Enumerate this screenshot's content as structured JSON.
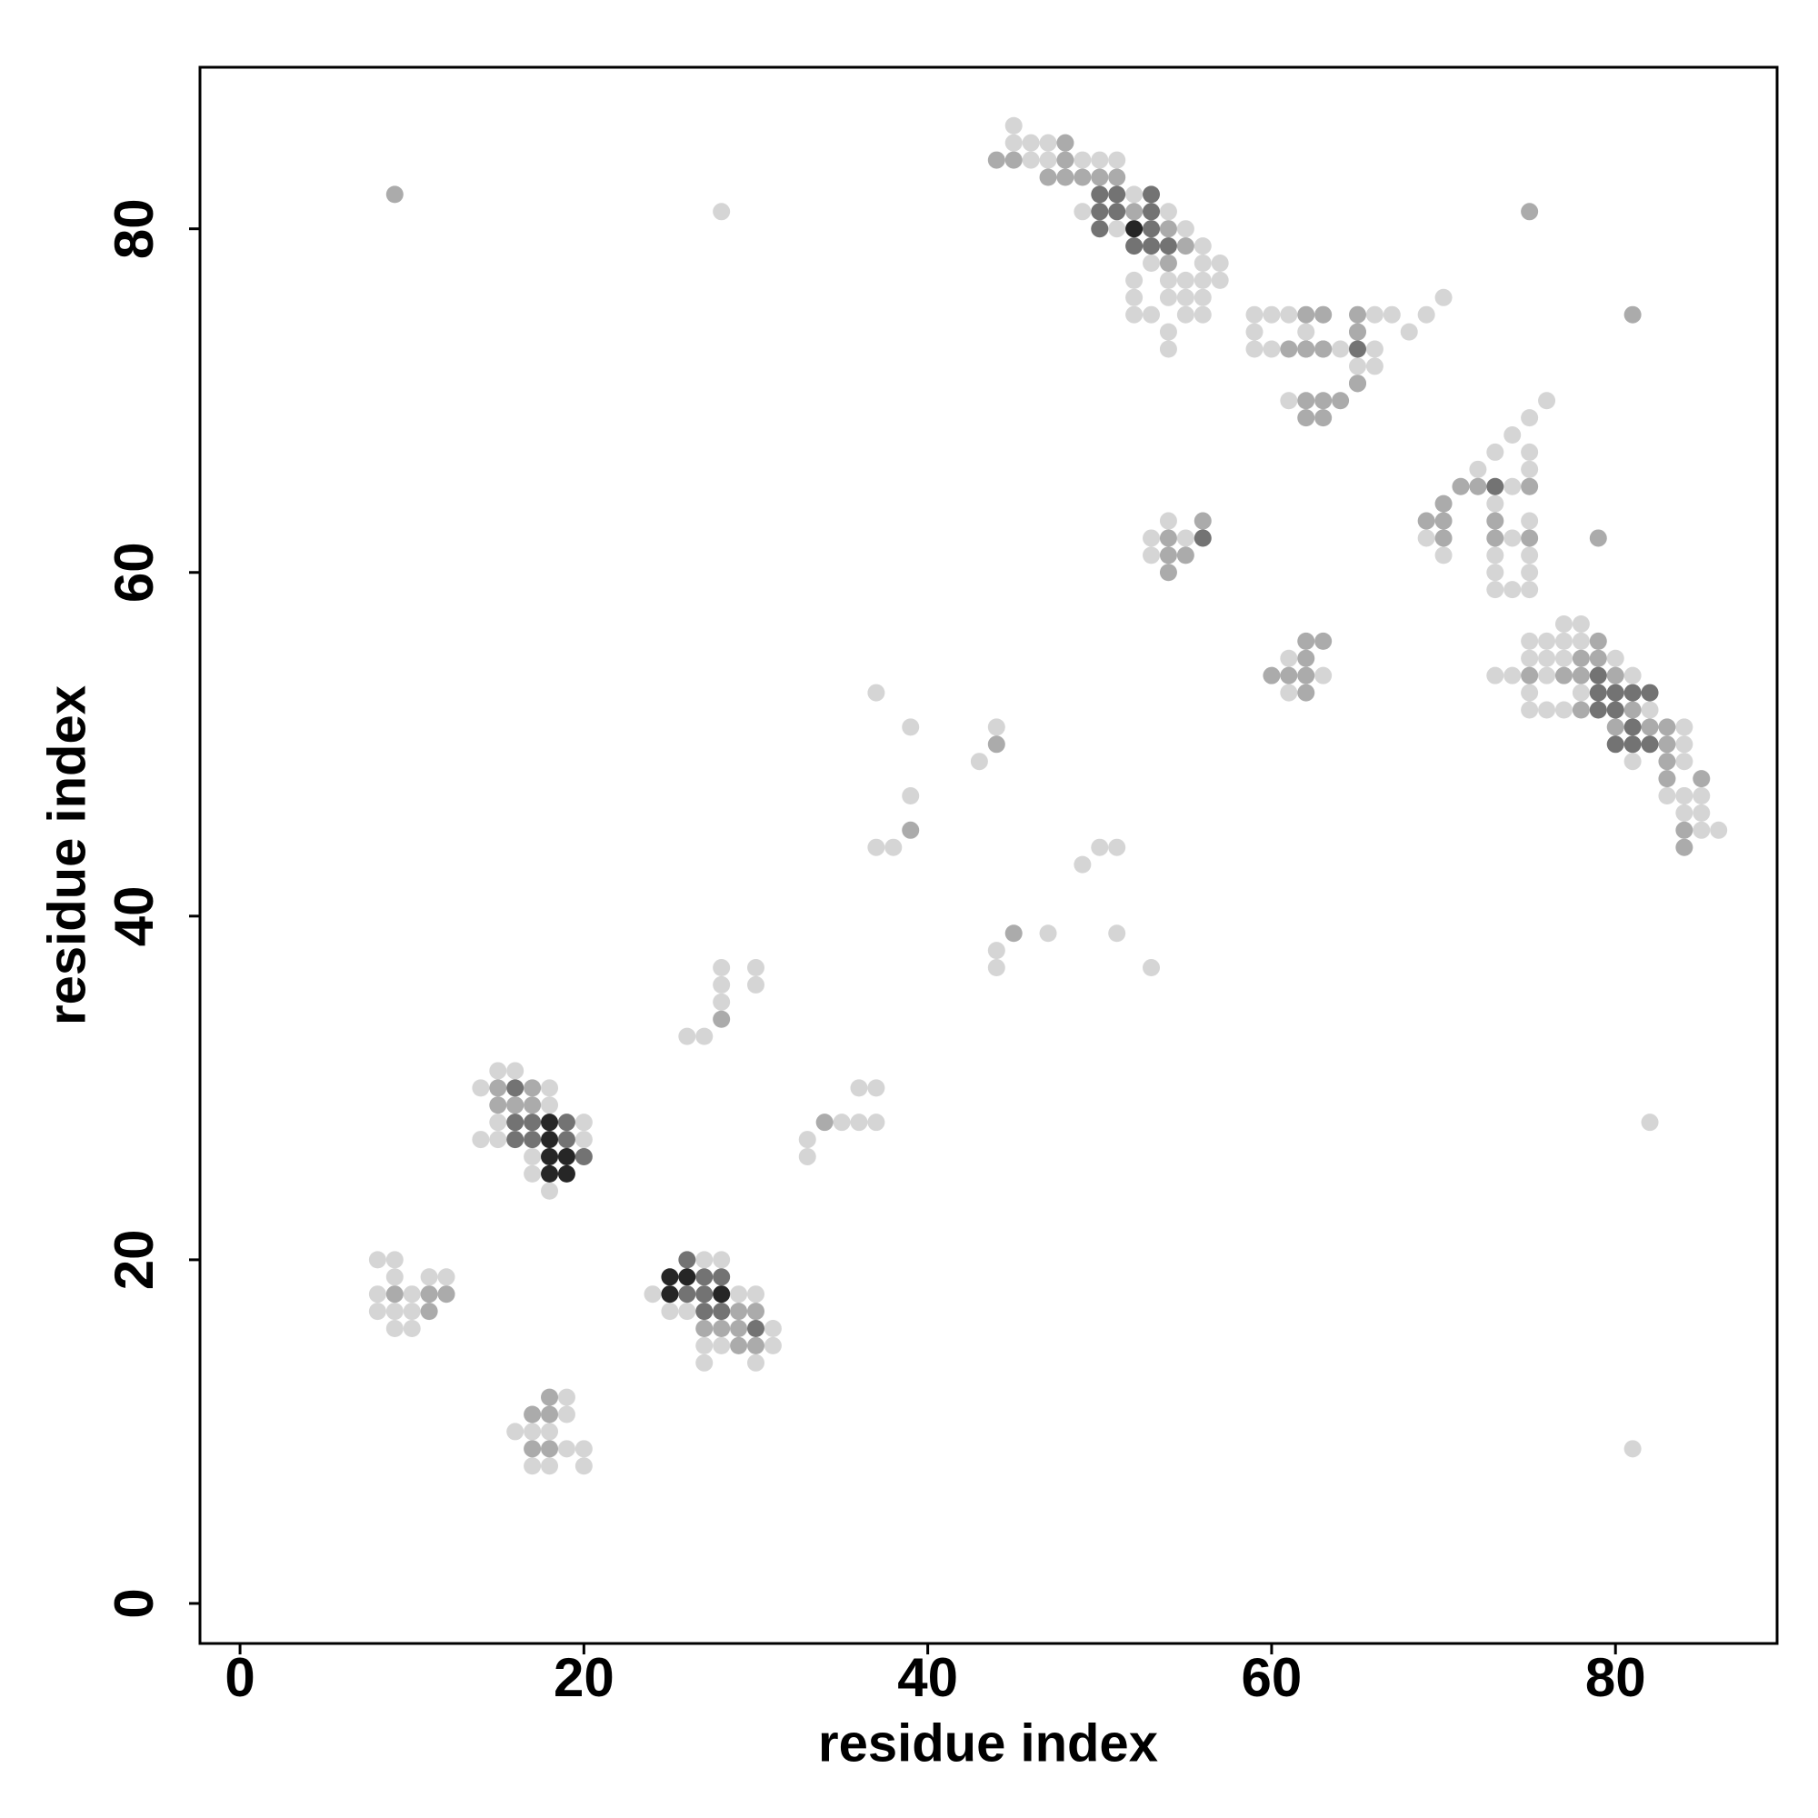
{
  "chart_data": {
    "type": "scatter",
    "x_label": "residue index",
    "y_label": "residue index",
    "xlim": [
      -2.33,
      89.4
    ],
    "ylim": [
      -2.33,
      89.4
    ],
    "xticks": [
      0,
      20,
      40,
      60,
      80
    ],
    "yticks": [
      0,
      20,
      40,
      60,
      80
    ],
    "series": [
      {
        "color": "#d5d5d5",
        "x": [
          28,
          82,
          81,
          45,
          45,
          46,
          47,
          46,
          47,
          49,
          50,
          51,
          52,
          49,
          54,
          55,
          51,
          56,
          53,
          56,
          57,
          52,
          54,
          55,
          56,
          57,
          52,
          54,
          55,
          56,
          52,
          53,
          55,
          56,
          54,
          54,
          70,
          59,
          60,
          61,
          63,
          66,
          67,
          69,
          59,
          62,
          65,
          68,
          59,
          60,
          64,
          66,
          65,
          66,
          61,
          76,
          75,
          74,
          73,
          75,
          72,
          75,
          74,
          73,
          75,
          69,
          74,
          70,
          73,
          75,
          73,
          75,
          73,
          74,
          75,
          54,
          53,
          55,
          53,
          63,
          61,
          61,
          77,
          78,
          75,
          76,
          77,
          78,
          75,
          76,
          77,
          80,
          73,
          74,
          76,
          81,
          75,
          78,
          75,
          76,
          77,
          82,
          84,
          84,
          81,
          84,
          84,
          83,
          84,
          85,
          84,
          85,
          85,
          86,
          37,
          39,
          44,
          43,
          39,
          37,
          38,
          50,
          51,
          49,
          44,
          47,
          51,
          44,
          53,
          28,
          30,
          28,
          30,
          28,
          26,
          27,
          36,
          37,
          35,
          36,
          37,
          33,
          33,
          15,
          16,
          14,
          18,
          18,
          15,
          20,
          14,
          15,
          20,
          17,
          17,
          18,
          8,
          9,
          9,
          11,
          12,
          8,
          10,
          8,
          9,
          10,
          9,
          10,
          27,
          28,
          24,
          29,
          30,
          25,
          26,
          31,
          27,
          28,
          31,
          27,
          30,
          19,
          19,
          16,
          17,
          18,
          19,
          20,
          17,
          18,
          20
        ],
        "y": [
          81,
          28,
          9,
          86,
          85,
          85,
          85,
          84,
          84,
          84,
          84,
          84,
          82,
          81,
          81,
          80,
          80,
          79,
          78,
          78,
          78,
          77,
          77,
          77,
          77,
          77,
          76,
          76,
          76,
          76,
          75,
          75,
          75,
          75,
          74,
          73,
          76,
          75,
          75,
          75,
          75,
          75,
          75,
          75,
          74,
          74,
          74,
          74,
          73,
          73,
          73,
          73,
          72,
          72,
          70,
          70,
          69,
          68,
          67,
          67,
          66,
          66,
          65,
          64,
          63,
          62,
          62,
          61,
          61,
          61,
          60,
          60,
          59,
          59,
          59,
          63,
          62,
          62,
          61,
          54,
          55,
          53,
          57,
          57,
          56,
          56,
          56,
          56,
          55,
          55,
          55,
          55,
          54,
          54,
          54,
          54,
          53,
          53,
          52,
          52,
          52,
          52,
          51,
          50,
          49,
          49,
          47,
          47,
          47,
          47,
          46,
          46,
          45,
          45,
          53,
          51,
          51,
          49,
          47,
          44,
          44,
          44,
          44,
          43,
          38,
          39,
          39,
          37,
          37,
          37,
          37,
          36,
          36,
          35,
          33,
          33,
          30,
          30,
          28,
          28,
          28,
          27,
          26,
          31,
          31,
          30,
          30,
          29,
          28,
          28,
          27,
          27,
          27,
          26,
          25,
          24,
          20,
          20,
          19,
          19,
          19,
          18,
          18,
          17,
          17,
          17,
          16,
          16,
          20,
          20,
          18,
          18,
          18,
          17,
          17,
          16,
          15,
          15,
          15,
          14,
          14,
          12,
          11,
          10,
          10,
          10,
          9,
          9,
          8,
          8,
          8
        ]
      },
      {
        "color": "#ababab",
        "x": [
          9,
          75,
          81,
          79,
          48,
          44,
          45,
          48,
          47,
          48,
          49,
          50,
          51,
          52,
          54,
          55,
          54,
          62,
          63,
          65,
          65,
          62,
          63,
          61,
          62,
          63,
          65,
          65,
          62,
          63,
          64,
          62,
          63,
          71,
          72,
          75,
          70,
          69,
          70,
          73,
          70,
          73,
          75,
          56,
          54,
          54,
          55,
          54,
          62,
          63,
          62,
          60,
          61,
          62,
          62,
          79,
          78,
          79,
          75,
          77,
          78,
          80,
          78,
          81,
          80,
          82,
          83,
          83,
          83,
          83,
          85,
          84,
          84,
          44,
          39,
          45,
          28,
          34,
          15,
          17,
          16,
          15,
          16,
          17,
          9,
          11,
          12,
          11,
          29,
          30,
          27,
          28,
          29,
          29,
          30,
          18,
          17,
          18,
          17,
          18
        ],
        "y": [
          82,
          81,
          75,
          62,
          85,
          84,
          84,
          84,
          83,
          83,
          83,
          83,
          83,
          81,
          80,
          79,
          78,
          75,
          75,
          75,
          74,
          73,
          73,
          73,
          73,
          73,
          71,
          71,
          70,
          70,
          70,
          69,
          69,
          65,
          65,
          65,
          64,
          63,
          63,
          63,
          62,
          62,
          62,
          63,
          62,
          61,
          61,
          60,
          56,
          56,
          55,
          54,
          54,
          54,
          53,
          56,
          55,
          55,
          54,
          54,
          54,
          54,
          52,
          52,
          51,
          51,
          51,
          50,
          49,
          48,
          48,
          45,
          44,
          50,
          45,
          39,
          34,
          28,
          30,
          30,
          29,
          29,
          29,
          29,
          18,
          18,
          18,
          17,
          17,
          17,
          16,
          16,
          16,
          15,
          15,
          12,
          11,
          11,
          9,
          9
        ]
      },
      {
        "color": "#737373",
        "x": [
          50,
          51,
          53,
          50,
          51,
          53,
          50,
          53,
          52,
          53,
          54,
          65,
          73,
          56,
          79,
          79,
          80,
          81,
          82,
          79,
          80,
          81,
          80,
          81,
          82,
          16,
          16,
          17,
          19,
          16,
          17,
          19,
          20,
          26,
          27,
          28,
          26,
          27,
          27,
          28,
          30
        ],
        "y": [
          82,
          82,
          82,
          81,
          81,
          81,
          80,
          80,
          79,
          79,
          79,
          73,
          65,
          62,
          54,
          53,
          53,
          53,
          53,
          52,
          52,
          51,
          50,
          50,
          50,
          30,
          28,
          28,
          28,
          27,
          27,
          27,
          26,
          20,
          19,
          19,
          18,
          18,
          17,
          17,
          16
        ]
      },
      {
        "color": "#262626",
        "x": [
          52,
          18,
          18,
          18,
          19,
          18,
          19,
          25,
          26,
          25,
          28
        ],
        "y": [
          80,
          28,
          27,
          26,
          26,
          25,
          25,
          19,
          19,
          18,
          18
        ]
      }
    ]
  }
}
